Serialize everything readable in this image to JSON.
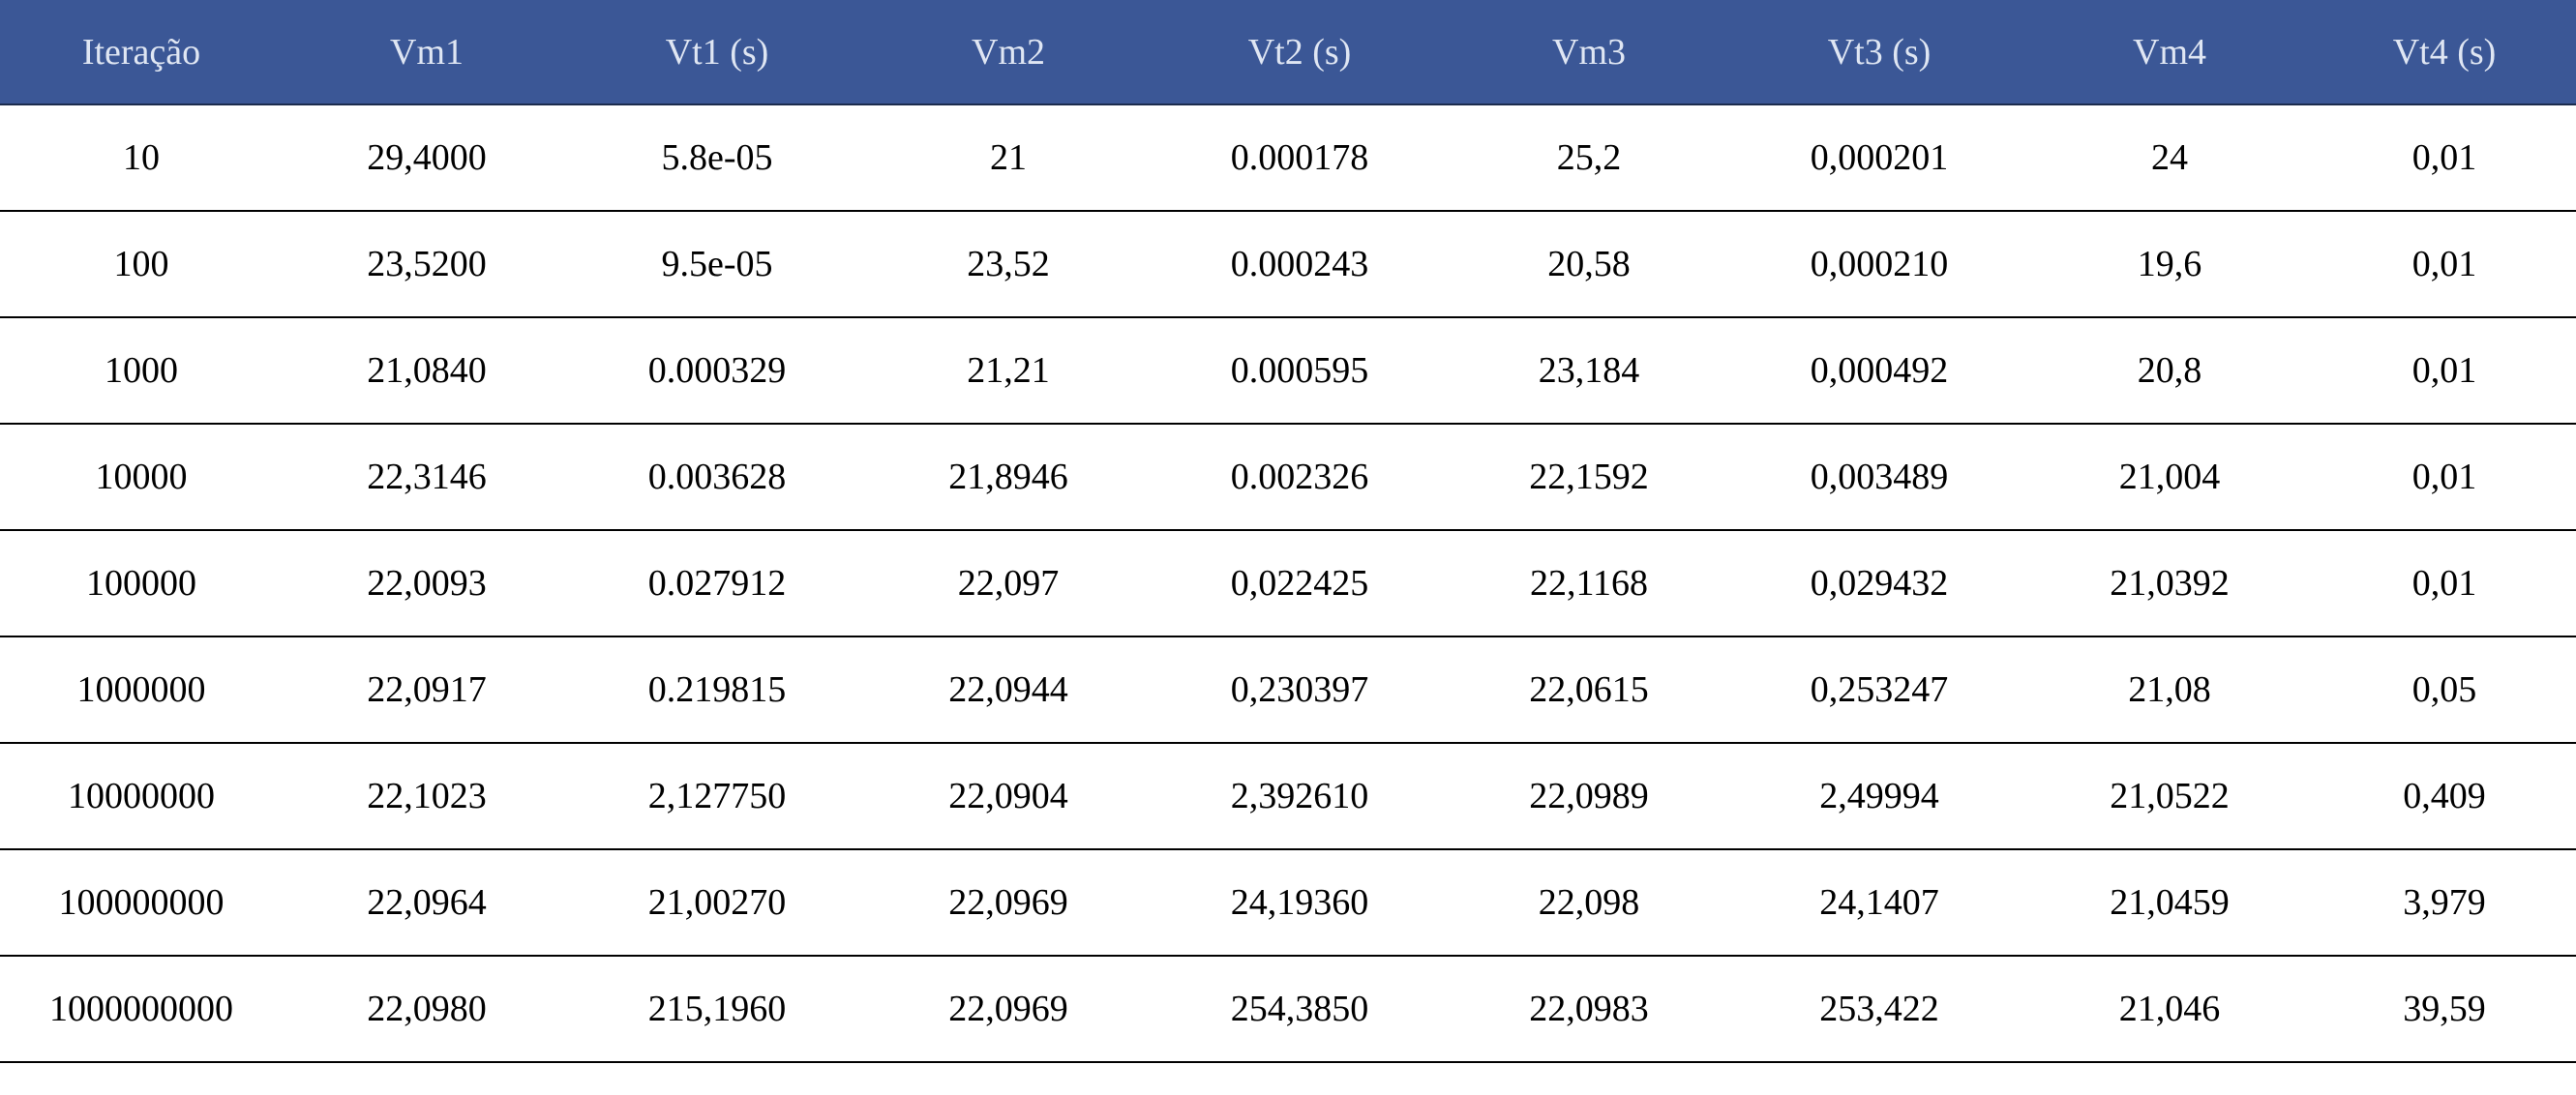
{
  "table": {
    "headers": [
      "Iteração",
      "Vm1",
      "Vt1 (s)",
      "Vm2",
      "Vt2 (s)",
      "Vm3",
      "Vt3 (s)",
      "Vm4",
      "Vt4 (s)"
    ],
    "rows": [
      [
        "10",
        "29,4000",
        "5.8e-05",
        "21",
        "0.000178",
        "25,2",
        "0,000201",
        "24",
        "0,01"
      ],
      [
        "100",
        "23,5200",
        "9.5e-05",
        "23,52",
        "0.000243",
        "20,58",
        "0,000210",
        "19,6",
        "0,01"
      ],
      [
        "1000",
        "21,0840",
        "0.000329",
        "21,21",
        "0.000595",
        "23,184",
        "0,000492",
        "20,8",
        "0,01"
      ],
      [
        "10000",
        "22,3146",
        "0.003628",
        "21,8946",
        "0.002326",
        "22,1592",
        "0,003489",
        "21,004",
        "0,01"
      ],
      [
        "100000",
        "22,0093",
        "0.027912",
        "22,097",
        "0,022425",
        "22,1168",
        "0,029432",
        "21,0392",
        "0,01"
      ],
      [
        "1000000",
        "22,0917",
        "0.219815",
        "22,0944",
        "0,230397",
        "22,0615",
        "0,253247",
        "21,08",
        "0,05"
      ],
      [
        "10000000",
        "22,1023",
        "2,127750",
        "22,0904",
        "2,392610",
        "22,0989",
        "2,49994",
        "21,0522",
        "0,409"
      ],
      [
        "100000000",
        "22,0964",
        "21,00270",
        "22,0969",
        "24,19360",
        "22,098",
        "24,1407",
        "21,0459",
        "3,979"
      ],
      [
        "1000000000",
        "22,0980",
        "215,1960",
        "22,0969",
        "254,3850",
        "22,0983",
        "253,422",
        "21,046",
        "39,59"
      ]
    ]
  },
  "colors": {
    "header_background": "#3b5796",
    "header_text": "#dfe6f3",
    "row_border": "#000000"
  }
}
